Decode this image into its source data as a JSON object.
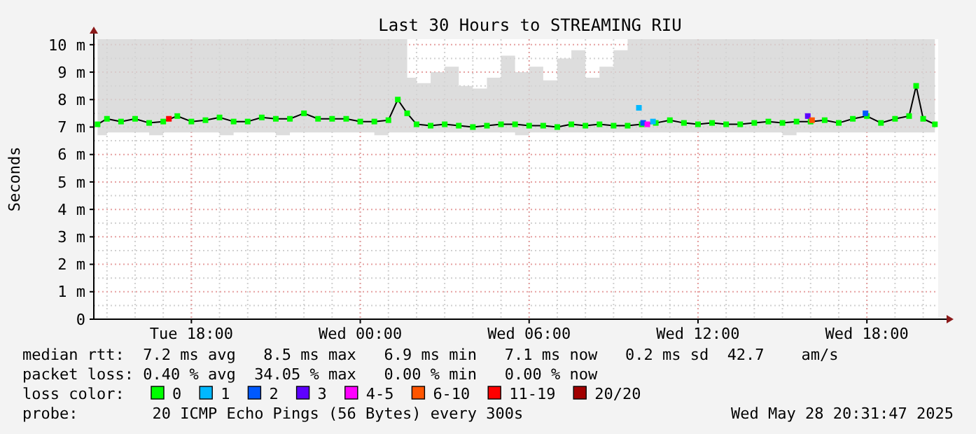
{
  "chart_data": {
    "type": "line",
    "title": "Last 30 Hours to STREAMING RIU",
    "ylabel": "Seconds",
    "legend_title": "loss color:",
    "legend": "bottom",
    "grid": true,
    "marker": "square",
    "xlim": [
      "2025-05-27T14:32",
      "2025-05-28T20:32"
    ],
    "xticks": [
      {
        "value": "2025-05-27T18:00",
        "label": "Tue 18:00"
      },
      {
        "value": "2025-05-28T00:00",
        "label": "Wed 00:00"
      },
      {
        "value": "2025-05-28T06:00",
        "label": "Wed 06:00"
      },
      {
        "value": "2025-05-28T12:00",
        "label": "Wed 12:00"
      },
      {
        "value": "2025-05-28T18:00",
        "label": "Wed 18:00"
      }
    ],
    "ylim": [
      0,
      10.2
    ],
    "yticks": [
      0,
      {
        "value": 1,
        "label": "1 m"
      },
      {
        "value": 2,
        "label": "2 m"
      },
      {
        "value": 3,
        "label": "3 m"
      },
      {
        "value": 4,
        "label": "4 m"
      },
      {
        "value": 5,
        "label": "5 m"
      },
      {
        "value": 6,
        "label": "6 m"
      },
      {
        "value": 7,
        "label": "7 m"
      },
      {
        "value": 8,
        "label": "8 m"
      },
      {
        "value": 9,
        "label": "9 m"
      },
      {
        "value": 10,
        "label": "10 m"
      }
    ],
    "x": [
      "2025-05-27T14:40",
      "2025-05-27T15:00",
      "2025-05-27T15:30",
      "2025-05-27T16:00",
      "2025-05-27T16:30",
      "2025-05-27T17:00",
      "2025-05-27T17:30",
      "2025-05-27T18:00",
      "2025-05-27T18:30",
      "2025-05-27T19:00",
      "2025-05-27T19:30",
      "2025-05-27T20:00",
      "2025-05-27T20:30",
      "2025-05-27T21:00",
      "2025-05-27T21:30",
      "2025-05-27T22:00",
      "2025-05-27T22:30",
      "2025-05-27T23:00",
      "2025-05-27T23:30",
      "2025-05-28T00:00",
      "2025-05-28T00:30",
      "2025-05-28T01:00",
      "2025-05-28T01:20",
      "2025-05-28T01:40",
      "2025-05-28T02:00",
      "2025-05-28T02:30",
      "2025-05-28T03:00",
      "2025-05-28T03:30",
      "2025-05-28T04:00",
      "2025-05-28T04:30",
      "2025-05-28T05:00",
      "2025-05-28T05:30",
      "2025-05-28T06:00",
      "2025-05-28T06:30",
      "2025-05-28T07:00",
      "2025-05-28T07:30",
      "2025-05-28T08:00",
      "2025-05-28T08:30",
      "2025-05-28T09:00",
      "2025-05-28T09:30",
      "2025-05-28T10:00",
      "2025-05-28T10:30",
      "2025-05-28T11:00",
      "2025-05-28T11:30",
      "2025-05-28T12:00",
      "2025-05-28T12:30",
      "2025-05-28T13:00",
      "2025-05-28T13:30",
      "2025-05-28T14:00",
      "2025-05-28T14:30",
      "2025-05-28T15:00",
      "2025-05-28T15:30",
      "2025-05-28T16:00",
      "2025-05-28T16:30",
      "2025-05-28T17:00",
      "2025-05-28T17:30",
      "2025-05-28T18:00",
      "2025-05-28T18:30",
      "2025-05-28T19:00",
      "2025-05-28T19:30",
      "2025-05-28T19:45",
      "2025-05-28T20:00",
      "2025-05-28T20:25"
    ],
    "series": [
      {
        "name": "0",
        "color": "#00ff00",
        "values": [
          7.1,
          7.3,
          7.2,
          7.3,
          7.15,
          7.2,
          7.4,
          7.2,
          7.25,
          7.35,
          7.2,
          7.2,
          7.35,
          7.3,
          7.3,
          7.5,
          7.3,
          7.3,
          7.3,
          7.2,
          7.2,
          7.25,
          8.0,
          7.5,
          7.1,
          7.05,
          7.1,
          7.05,
          7.0,
          7.05,
          7.1,
          7.1,
          7.05,
          7.05,
          7.0,
          7.1,
          7.05,
          7.1,
          7.05,
          7.05,
          7.1,
          7.15,
          7.25,
          7.15,
          7.1,
          7.15,
          7.1,
          7.1,
          7.15,
          7.2,
          7.15,
          7.2,
          7.2,
          7.25,
          7.15,
          7.3,
          7.4,
          7.15,
          7.3,
          7.4,
          8.5,
          7.3,
          7.1
        ],
        "lower": [
          6.7,
          6.8,
          6.8,
          6.8,
          6.7,
          6.8,
          6.8,
          6.8,
          6.8,
          6.7,
          6.8,
          6.8,
          6.8,
          6.7,
          6.8,
          6.8,
          6.8,
          6.8,
          6.8,
          6.8,
          6.7,
          6.8,
          6.8,
          6.8,
          6.8,
          6.8,
          6.8,
          6.8,
          6.8,
          6.8,
          6.8,
          6.7,
          6.8,
          6.8,
          6.8,
          6.8,
          6.8,
          6.8,
          6.8,
          6.8,
          6.8,
          6.8,
          6.8,
          6.8,
          6.8,
          6.8,
          6.8,
          6.8,
          6.8,
          6.8,
          6.7,
          6.8,
          6.8,
          6.8,
          6.8,
          6.8,
          6.8,
          6.8,
          6.8,
          6.8,
          6.8,
          6.8,
          6.8
        ],
        "upper": [
          10.2,
          10.2,
          10.2,
          10.2,
          10.2,
          10.2,
          10.2,
          10.2,
          10.2,
          10.2,
          10.2,
          10.2,
          10.2,
          10.2,
          10.2,
          10.2,
          10.2,
          10.2,
          10.2,
          10.2,
          10.2,
          10.2,
          10.2,
          8.8,
          8.6,
          9.0,
          9.2,
          8.5,
          8.4,
          8.8,
          9.6,
          9.0,
          9.2,
          8.7,
          9.5,
          9.8,
          8.8,
          9.2,
          9.8,
          10.2,
          10.2,
          10.2,
          10.2,
          10.2,
          10.2,
          10.2,
          10.2,
          10.2,
          10.2,
          10.2,
          10.2,
          10.2,
          10.2,
          10.2,
          10.2,
          10.2,
          10.2,
          10.2,
          10.2,
          10.2,
          10.2,
          10.2,
          10.2
        ]
      },
      {
        "name": "1",
        "type": "scatter",
        "color": "#00b8ff",
        "x": [
          "2025-05-28T09:54",
          "2025-05-28T10:24"
        ],
        "values": [
          7.7,
          7.2
        ]
      },
      {
        "name": "2",
        "type": "scatter",
        "color": "#0059ff",
        "x": [
          "2025-05-28T10:03",
          "2025-05-28T17:57"
        ],
        "values": [
          7.15,
          7.5
        ]
      },
      {
        "name": "3",
        "type": "scatter",
        "color": "#5e00ff",
        "x": [
          "2025-05-28T15:54"
        ],
        "values": [
          7.4
        ]
      },
      {
        "name": "4-5",
        "type": "scatter",
        "color": "#ff00ff",
        "x": [
          "2025-05-28T10:12"
        ],
        "values": [
          7.1
        ]
      },
      {
        "name": "6-10",
        "type": "scatter",
        "color": "#ff5500",
        "x": [
          "2025-05-28T16:03"
        ],
        "values": [
          7.25
        ]
      },
      {
        "name": "11-19",
        "type": "scatter",
        "color": "#ff0000",
        "x": [
          "2025-05-27T17:12"
        ],
        "values": [
          7.3
        ]
      },
      {
        "name": "20/20",
        "type": "scatter",
        "color": "#a10000",
        "values": [
          null,
          null,
          null,
          null,
          null,
          null,
          null,
          null,
          null,
          null,
          null,
          null,
          null,
          null,
          null,
          null,
          null,
          null,
          null,
          null,
          null,
          null,
          null,
          null,
          null,
          null,
          null,
          null,
          null,
          null,
          null,
          null,
          null,
          null,
          null,
          null,
          null,
          null,
          null,
          null,
          null,
          null,
          null,
          null,
          null,
          null,
          null,
          null,
          null,
          null,
          null,
          null,
          null,
          null,
          null,
          null,
          null,
          null,
          null,
          null,
          null,
          null,
          null
        ]
      }
    ],
    "annotations": [
      "median rtt:  7.2 ms avg   8.5 ms max   6.9 ms min   7.1 ms now   0.2 ms sd  42.7    am/s",
      "packet loss: 0.40 % avg  34.05 % max   0.00 % min   0.00 % now",
      "probe:        20 ICMP Echo Pings (56 Bytes) every 300s",
      "Wed May 28 20:31:47 2025"
    ]
  }
}
